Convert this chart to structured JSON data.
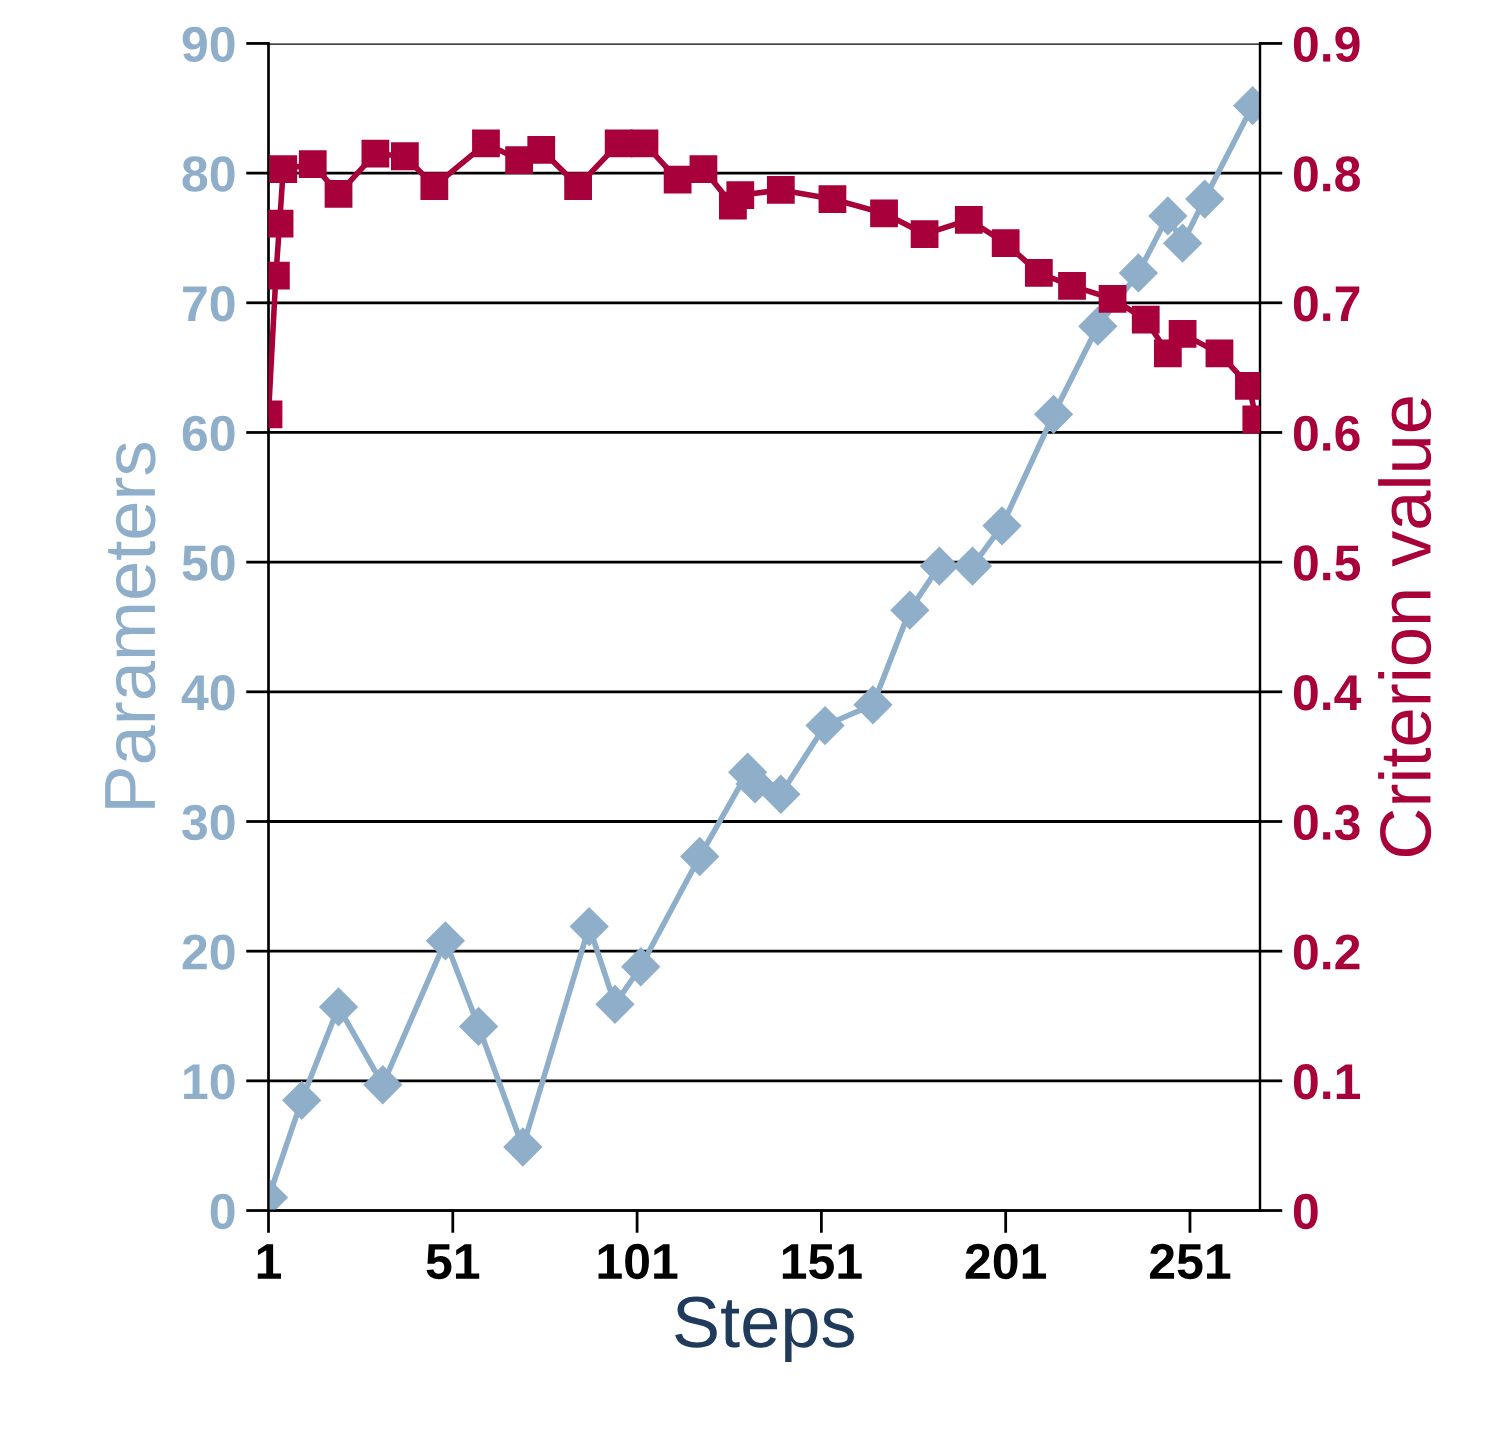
{
  "chart_data": {
    "type": "line",
    "xlabel": "Steps",
    "ylabel": "Parameters",
    "y2label": "Criterion value",
    "xlim": [
      1,
      270
    ],
    "xticks": [
      1,
      51,
      101,
      151,
      201,
      251
    ],
    "ylim": [
      0,
      90
    ],
    "yticks": [
      0,
      10,
      20,
      30,
      40,
      50,
      60,
      70,
      80,
      90
    ],
    "y2lim": [
      0,
      0.9
    ],
    "y2ticks": [
      0,
      0.1,
      0.2,
      0.3,
      0.4,
      0.5,
      0.6,
      0.7,
      0.8,
      0.9
    ],
    "grid": "y",
    "line_style": "solid",
    "series": [
      {
        "color": "#8eaec9",
        "marker": "diamond",
        "axis": "y",
        "x": [
          1,
          10,
          20,
          32,
          49,
          58,
          70,
          88,
          95,
          102,
          118,
          131,
          133,
          140,
          152,
          165,
          175,
          183,
          192,
          200,
          214,
          226,
          237,
          245,
          249,
          255,
          268
        ],
        "values": [
          1,
          8.5,
          15.7,
          9.7,
          20.8,
          14.2,
          4.9,
          21.9,
          15.9,
          18.8,
          27.3,
          33.8,
          32.9,
          32.1,
          37.4,
          39,
          46.3,
          49.7,
          49.7,
          52.8,
          61.4,
          68.2,
          72.3,
          76.7,
          74.6,
          78,
          85.2
        ]
      },
      {
        "color": "#a8003b",
        "marker": "square",
        "axis": "y2",
        "x": [
          1,
          3,
          4,
          5,
          13,
          20,
          30,
          38,
          46,
          60,
          69,
          75,
          85,
          96,
          103,
          112,
          119,
          127,
          129,
          140,
          154,
          168,
          179,
          191,
          201,
          210,
          219,
          230,
          239,
          245,
          249,
          259,
          267,
          269
        ],
        "values": [
          0.614,
          0.721,
          0.761,
          0.803,
          0.807,
          0.784,
          0.815,
          0.813,
          0.79,
          0.823,
          0.81,
          0.818,
          0.79,
          0.823,
          0.823,
          0.795,
          0.803,
          0.775,
          0.783,
          0.787,
          0.78,
          0.769,
          0.753,
          0.764,
          0.746,
          0.723,
          0.713,
          0.703,
          0.687,
          0.661,
          0.676,
          0.661,
          0.636,
          0.61
        ]
      }
    ]
  }
}
